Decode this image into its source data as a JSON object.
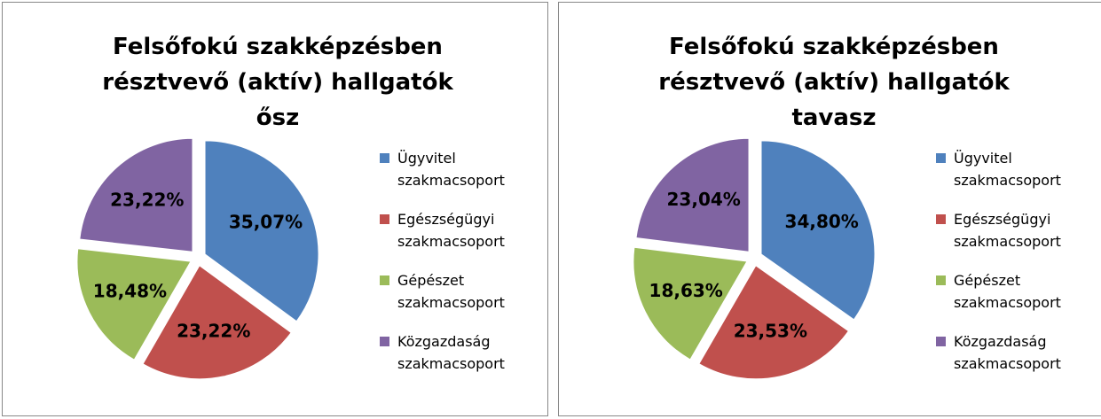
{
  "chart_data": [
    {
      "type": "pie",
      "title": "Felsőfokú szakképzésben résztvevő (aktív) hallgatók ősz",
      "categories": [
        "Ügyvitel szakmacsoport",
        "Egészségügyi szakmacsoport",
        "Gépészet szakmacsoport",
        "Közgazdaság szakmacsoport"
      ],
      "values": [
        35.07,
        23.22,
        18.48,
        23.22
      ],
      "value_labels": [
        "35,07%",
        "23,22%",
        "18,48%",
        "23,22%"
      ],
      "colors": [
        "#4f81bd",
        "#c0504d",
        "#9bbb59",
        "#8064a2"
      ],
      "legend": "right"
    },
    {
      "type": "pie",
      "title": "Felsőfokú szakképzésben résztvevő (aktív) hallgatók tavasz",
      "categories": [
        "Ügyvitel szakmacsoport",
        "Egészségügyi szakmacsoport",
        "Gépészet szakmacsoport",
        "Közgazdaság szakmacsoport"
      ],
      "values": [
        34.8,
        23.53,
        18.63,
        23.04
      ],
      "value_labels": [
        "34,80%",
        "23,53%",
        "18,63%",
        "23,04%"
      ],
      "colors": [
        "#4f81bd",
        "#c0504d",
        "#9bbb59",
        "#8064a2"
      ],
      "legend": "right"
    }
  ]
}
